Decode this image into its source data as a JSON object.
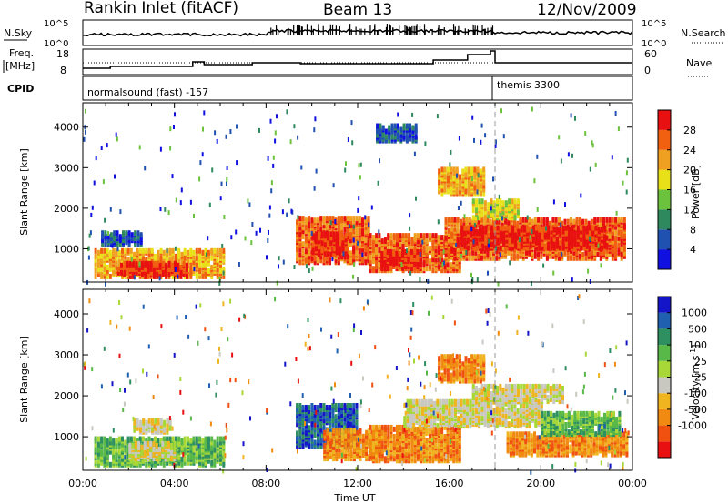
{
  "header": {
    "station": "Rankin Inlet (fitACF)",
    "beam": "Beam 13",
    "date": "12/Nov/2009"
  },
  "panels": {
    "nsky_label": "N.Sky",
    "nsearch_label": "N.Search",
    "noise_ticks": [
      "10^5",
      "10^0"
    ],
    "freq_label_1": "Freq.",
    "freq_label_2": "[MHz]",
    "freq_ticks": [
      "18",
      "8"
    ],
    "nave_label": "Nave",
    "nave_ticks": [
      "60",
      "0"
    ],
    "cpid_label": "CPID",
    "cpid_1": "normalsound (fast) -157",
    "cpid_2": "themis 3300"
  },
  "colors": {
    "power_scale": [
      "#1010e0",
      "#2050b0",
      "#2e8a5e",
      "#6cc23c",
      "#e8e018",
      "#f0a020",
      "#f06010",
      "#e81010"
    ],
    "velocity_scale": [
      "#e81010",
      "#f05010",
      "#f08a10",
      "#f0b420",
      "#c8c8c0",
      "#a8d838",
      "#58b848",
      "#2e9060",
      "#2060b0",
      "#1414c8"
    ]
  },
  "chart_data": [
    {
      "type": "heatmap",
      "name": "power",
      "ylabel": "Slant Range [km]",
      "xlabel": "",
      "xticks": [
        "00:00",
        "04:00",
        "08:00",
        "12:00",
        "16:00",
        "20:00",
        "00:00"
      ],
      "yticks": [
        1000,
        2000,
        3000,
        4000
      ],
      "ylim": [
        180,
        4600
      ],
      "colorbar_label": "Power [dB]",
      "colorbar_ticks": [
        4,
        8,
        12,
        16,
        20,
        24,
        28
      ],
      "marker_time": "18:00",
      "regions": [
        {
          "t0": 0.5,
          "t1": 6.2,
          "r0": 250,
          "r1": 900,
          "level": 5
        },
        {
          "t0": 1.5,
          "t1": 4.5,
          "r0": 250,
          "r1": 600,
          "level": 7
        },
        {
          "t0": 0.8,
          "t1": 2.6,
          "r0": 1050,
          "r1": 1350,
          "level": 1
        },
        {
          "t0": 9.3,
          "t1": 12.5,
          "r0": 600,
          "r1": 1700,
          "level": 6
        },
        {
          "t0": 10.0,
          "t1": 11.5,
          "r0": 800,
          "r1": 1300,
          "level": 7
        },
        {
          "t0": 12.5,
          "t1": 16.5,
          "r0": 400,
          "r1": 1300,
          "level": 6
        },
        {
          "t0": 13.0,
          "t1": 14.8,
          "r0": 450,
          "r1": 900,
          "level": 7
        },
        {
          "t0": 15.8,
          "t1": 23.6,
          "r0": 700,
          "r1": 1650,
          "level": 6
        },
        {
          "t0": 16.5,
          "t1": 22.8,
          "r0": 950,
          "r1": 1450,
          "level": 7
        },
        {
          "t0": 15.5,
          "t1": 17.5,
          "r0": 2300,
          "r1": 2900,
          "level": 5
        },
        {
          "t0": 12.8,
          "t1": 14.5,
          "r0": 3600,
          "r1": 4000,
          "level": 1
        },
        {
          "t0": 17.0,
          "t1": 19.0,
          "r0": 1700,
          "r1": 2150,
          "level": 4
        }
      ]
    },
    {
      "type": "heatmap",
      "name": "velocity",
      "ylabel": "Slant Range [km]",
      "xlabel": "Time UT",
      "xticks": [
        "00:00",
        "04:00",
        "08:00",
        "12:00",
        "16:00",
        "20:00",
        "00:00"
      ],
      "yticks": [
        1000,
        2000,
        3000,
        4000
      ],
      "ylim": [
        180,
        4600
      ],
      "colorbar_label": "Velocity [m s^-1]",
      "colorbar_ticks": [
        1000,
        500,
        100,
        25,
        -25,
        -100,
        -500,
        -1000
      ],
      "marker_time": "18:00",
      "regions": [
        {
          "t0": 0.5,
          "t1": 6.2,
          "r0": 250,
          "r1": 900,
          "level": 6
        },
        {
          "t0": 2.0,
          "t1": 4.0,
          "r0": 400,
          "r1": 800,
          "level": 4
        },
        {
          "t0": 2.2,
          "t1": 3.8,
          "r0": 1050,
          "r1": 1350,
          "level": 4
        },
        {
          "t0": 9.3,
          "t1": 12.0,
          "r0": 700,
          "r1": 1700,
          "level": 8
        },
        {
          "t0": 10.5,
          "t1": 13.0,
          "r0": 400,
          "r1": 1100,
          "level": 2
        },
        {
          "t0": 12.5,
          "t1": 16.5,
          "r0": 350,
          "r1": 1200,
          "level": 2
        },
        {
          "t0": 14.0,
          "t1": 20.0,
          "r0": 1200,
          "r1": 1800,
          "level": 4
        },
        {
          "t0": 17.0,
          "t1": 21.0,
          "r0": 1800,
          "r1": 2200,
          "level": 4
        },
        {
          "t0": 18.5,
          "t1": 23.8,
          "r0": 500,
          "r1": 1000,
          "level": 2
        },
        {
          "t0": 20.0,
          "t1": 23.5,
          "r0": 1000,
          "r1": 1500,
          "level": 6
        },
        {
          "t0": 15.5,
          "t1": 17.5,
          "r0": 2300,
          "r1": 2900,
          "level": 2
        }
      ]
    }
  ]
}
